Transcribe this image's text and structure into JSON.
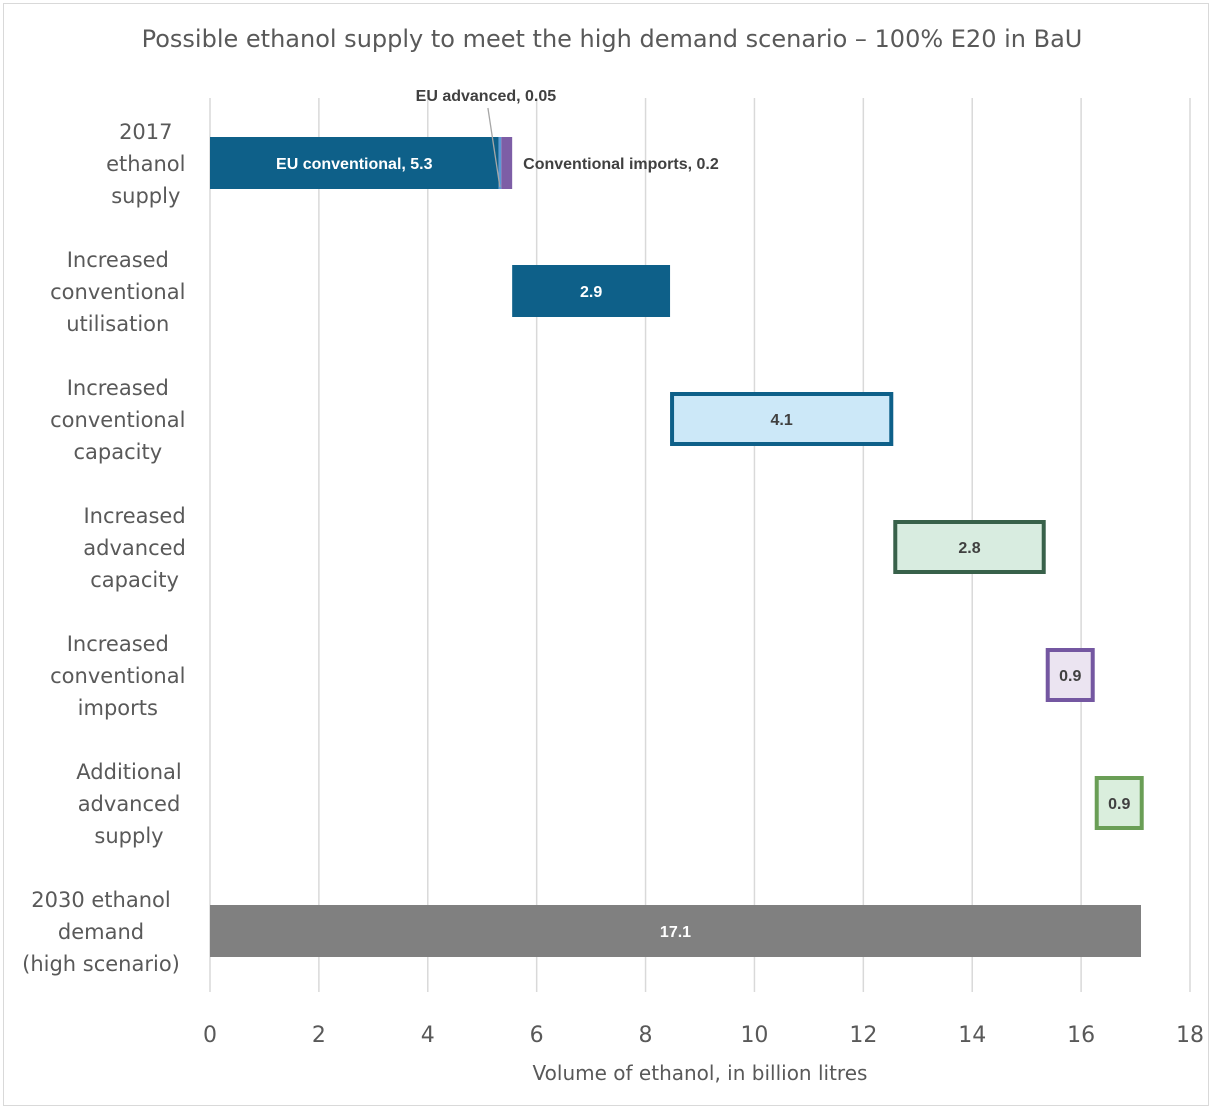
{
  "chart_data": {
    "type": "bar",
    "orientation": "horizontal",
    "variant": "waterfall",
    "title": "Possible ethanol supply to meet the high demand scenario – 100% E20 in BaU",
    "xlabel": "Volume of ethanol, in billion litres",
    "ylabel": "",
    "xlim": [
      0,
      18
    ],
    "xticks": [
      0,
      2,
      4,
      6,
      8,
      10,
      12,
      14,
      16,
      18
    ],
    "tick_labels": [
      "0",
      "2",
      "4",
      "6",
      "8",
      "10",
      "12",
      "14",
      "16",
      "18"
    ],
    "grid": "vertical",
    "legend": "none",
    "categories": [
      [
        "2017",
        "ethanol",
        "supply"
      ],
      [
        "Increased",
        "conventional",
        "utilisation"
      ],
      [
        "Increased",
        "conventional",
        "capacity"
      ],
      [
        "Increased",
        "advanced",
        "capacity"
      ],
      [
        "Increased",
        "conventional",
        "imports"
      ],
      [
        "Additional",
        "advanced",
        "supply"
      ],
      [
        "2030 ethanol",
        "demand",
        "(high scenario)"
      ]
    ],
    "segments": [
      {
        "category": 0,
        "start": 0,
        "value": 5.3,
        "label": "EU conventional, 5.3",
        "fill": "#0e6089",
        "stroke": "none",
        "label_color": "#ffffff",
        "label_pos": "inside"
      },
      {
        "category": 0,
        "start": 5.3,
        "value": 0.05,
        "label": "EU advanced, 0.05",
        "fill": "#5b9bd5",
        "stroke": "none",
        "label_color": "#404040",
        "label_pos": "callout-above"
      },
      {
        "category": 0,
        "start": 5.35,
        "value": 0.2,
        "label": "Conventional imports, 0.2",
        "fill": "#7d5ea6",
        "stroke": "none",
        "label_color": "#404040",
        "label_pos": "right"
      },
      {
        "category": 1,
        "start": 5.55,
        "value": 2.9,
        "label": "2.9",
        "fill": "#0e6089",
        "stroke": "none",
        "label_color": "#ffffff",
        "label_pos": "inside"
      },
      {
        "category": 2,
        "start": 8.45,
        "value": 4.1,
        "label": "4.1",
        "fill": "#cce8f8",
        "stroke": "#0e6089",
        "label_color": "#404040",
        "label_pos": "inside"
      },
      {
        "category": 3,
        "start": 12.55,
        "value": 2.8,
        "label": "2.8",
        "fill": "#d8ece0",
        "stroke": "#38614a",
        "label_color": "#404040",
        "label_pos": "inside"
      },
      {
        "category": 4,
        "start": 15.35,
        "value": 0.9,
        "label": "0.9",
        "fill": "#ebe4f1",
        "stroke": "#7457a1",
        "label_color": "#404040",
        "label_pos": "inside"
      },
      {
        "category": 5,
        "start": 16.25,
        "value": 0.9,
        "label": "0.9",
        "fill": "#daeedd",
        "stroke": "#6a9e56",
        "label_color": "#404040",
        "label_pos": "inside"
      }
    ],
    "total": {
      "category": 6,
      "value": 17.1,
      "label": "17.1",
      "fill": "#808080",
      "label_color": "#ffffff"
    }
  }
}
